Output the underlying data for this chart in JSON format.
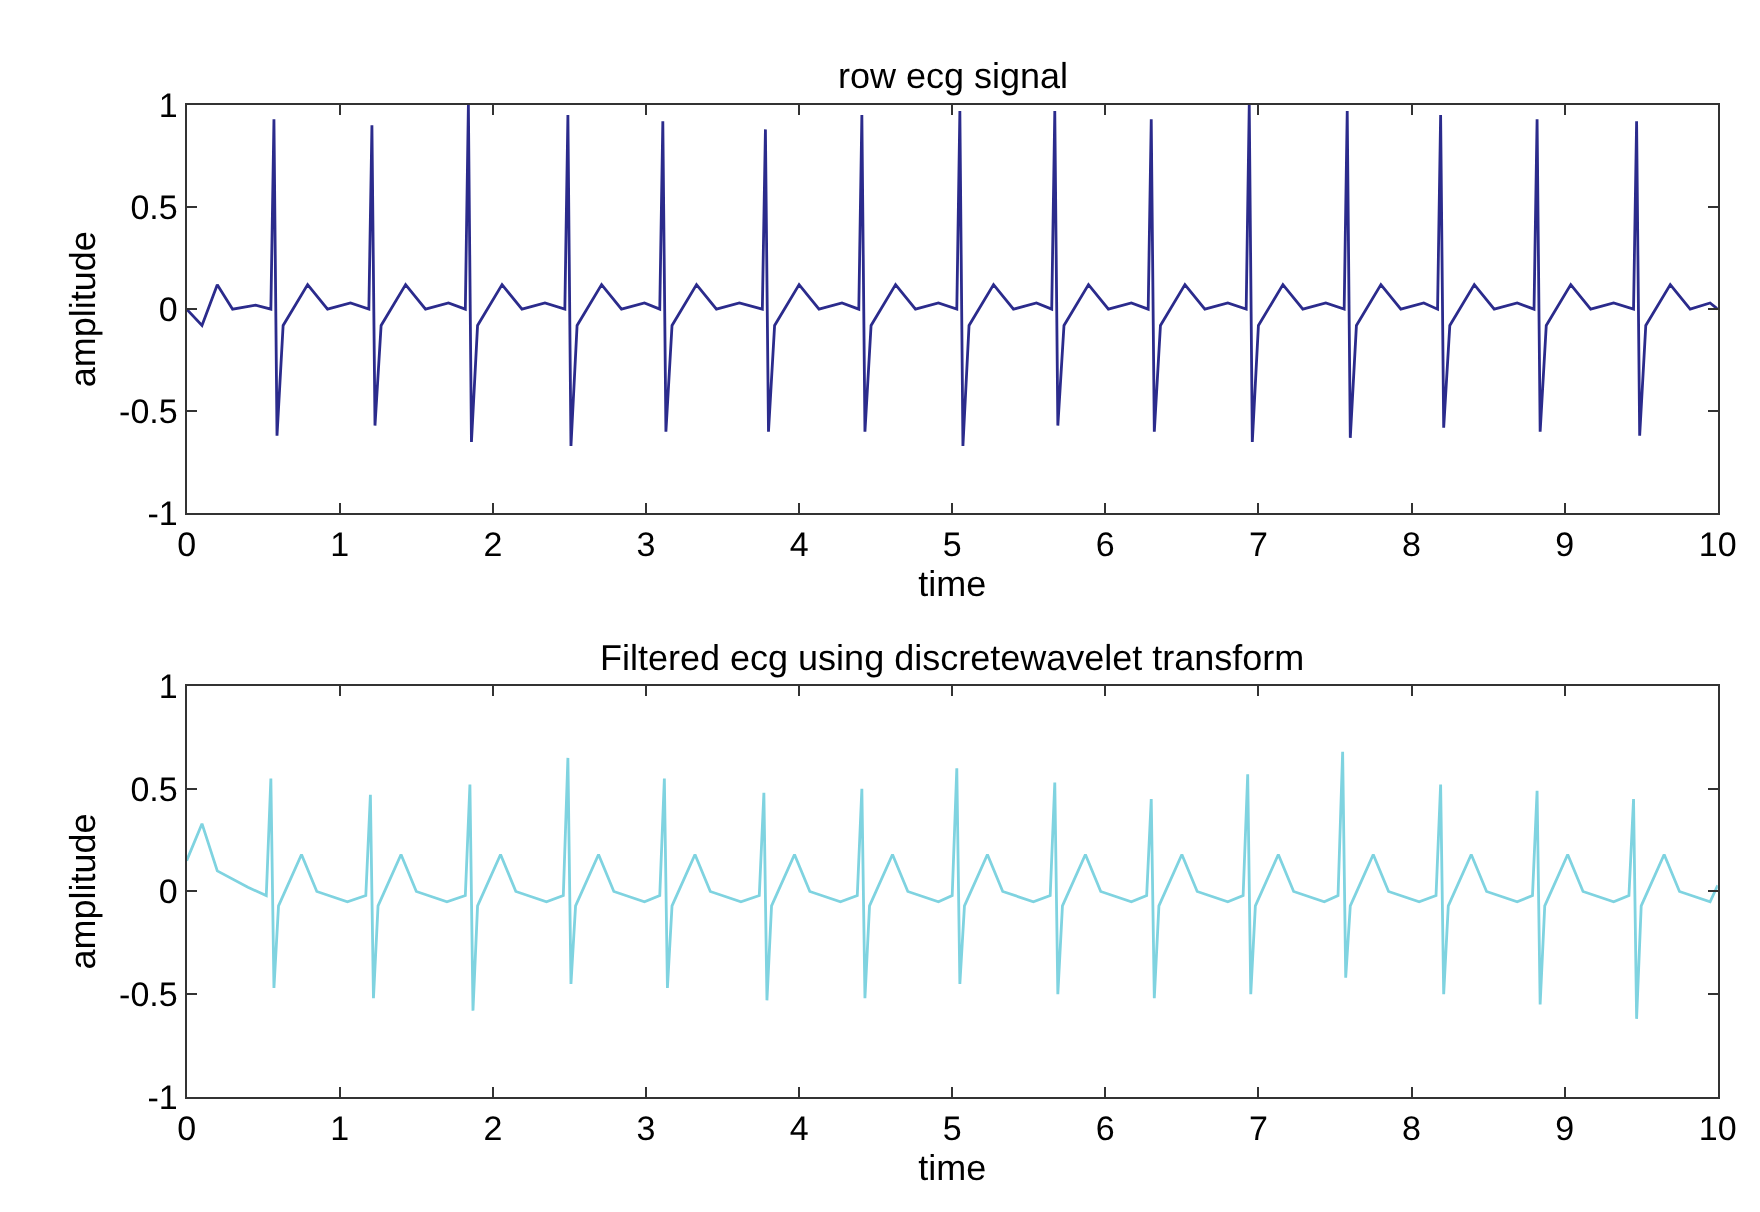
{
  "chart_data": [
    {
      "type": "line",
      "title": "row ecg signal",
      "xlabel": "time",
      "ylabel": "amplitude",
      "xlim": [
        0,
        10
      ],
      "ylim": [
        -1,
        1
      ],
      "xticks": [
        0,
        1,
        2,
        3,
        4,
        5,
        6,
        7,
        8,
        9,
        10
      ],
      "yticks": [
        -1,
        -0.5,
        0,
        0.5,
        1
      ],
      "marker": "none",
      "line_style": "solid",
      "series": [
        {
          "color": "#2b2b8c",
          "x": [
            0,
            0.1,
            0.2,
            0.3,
            0.45,
            0.55,
            0.57,
            0.59,
            0.63,
            0.79,
            0.92,
            1.07,
            1.19,
            1.21,
            1.23,
            1.27,
            1.43,
            1.56,
            1.71,
            1.82,
            1.84,
            1.86,
            1.9,
            2.06,
            2.19,
            2.34,
            2.47,
            2.49,
            2.51,
            2.55,
            2.71,
            2.84,
            2.99,
            3.09,
            3.11,
            3.13,
            3.17,
            3.33,
            3.46,
            3.61,
            3.76,
            3.78,
            3.8,
            3.84,
            4.0,
            4.13,
            4.28,
            4.39,
            4.41,
            4.43,
            4.47,
            4.63,
            4.76,
            4.91,
            5.03,
            5.05,
            5.07,
            5.11,
            5.27,
            5.4,
            5.55,
            5.65,
            5.67,
            5.69,
            5.73,
            5.89,
            6.02,
            6.17,
            6.28,
            6.3,
            6.32,
            6.36,
            6.52,
            6.65,
            6.8,
            6.92,
            6.94,
            6.96,
            7.0,
            7.16,
            7.29,
            7.44,
            7.56,
            7.58,
            7.6,
            7.64,
            7.8,
            7.93,
            8.08,
            8.17,
            8.19,
            8.21,
            8.25,
            8.41,
            8.54,
            8.69,
            8.8,
            8.82,
            8.84,
            8.88,
            9.04,
            9.17,
            9.32,
            9.45,
            9.47,
            9.49,
            9.53,
            9.69,
            9.82,
            9.95,
            10
          ],
          "values": [
            0,
            -0.08,
            0.12,
            0,
            0.02,
            0,
            0.93,
            -0.62,
            -0.08,
            0.12,
            0,
            0.03,
            0,
            0.9,
            -0.57,
            -0.08,
            0.12,
            0,
            0.03,
            0,
            1.0,
            -0.65,
            -0.08,
            0.12,
            0,
            0.03,
            0,
            0.95,
            -0.67,
            -0.08,
            0.12,
            0,
            0.03,
            0,
            0.92,
            -0.6,
            -0.08,
            0.12,
            0,
            0.03,
            0,
            0.88,
            -0.6,
            -0.08,
            0.12,
            0,
            0.03,
            0,
            0.95,
            -0.6,
            -0.08,
            0.12,
            0,
            0.03,
            0,
            0.97,
            -0.67,
            -0.08,
            0.12,
            0,
            0.03,
            0,
            0.97,
            -0.57,
            -0.08,
            0.12,
            0,
            0.03,
            0,
            0.93,
            -0.6,
            -0.08,
            0.12,
            0,
            0.03,
            0,
            1.0,
            -0.65,
            -0.08,
            0.12,
            0,
            0.03,
            0,
            0.97,
            -0.63,
            -0.08,
            0.12,
            0,
            0.03,
            0,
            0.95,
            -0.58,
            -0.08,
            0.12,
            0,
            0.03,
            0,
            0.93,
            -0.6,
            -0.08,
            0.12,
            0,
            0.03,
            0,
            0.92,
            -0.62,
            -0.08,
            0.12,
            0,
            0.03,
            0
          ]
        }
      ]
    },
    {
      "type": "line",
      "title": "Filtered ecg using discretewavelet transform",
      "xlabel": "time",
      "ylabel": "amplitude",
      "xlim": [
        0,
        10
      ],
      "ylim": [
        -1,
        1
      ],
      "xticks": [
        0,
        1,
        2,
        3,
        4,
        5,
        6,
        7,
        8,
        9,
        10
      ],
      "yticks": [
        -1,
        -0.5,
        0,
        0.5,
        1
      ],
      "marker": "none",
      "line_style": "solid",
      "series": [
        {
          "color": "#7fd3e0",
          "x": [
            0,
            0.1,
            0.2,
            0.4,
            0.52,
            0.55,
            0.57,
            0.6,
            0.75,
            0.85,
            1.05,
            1.17,
            1.2,
            1.22,
            1.25,
            1.4,
            1.5,
            1.7,
            1.82,
            1.85,
            1.87,
            1.9,
            2.05,
            2.15,
            2.35,
            2.46,
            2.49,
            2.51,
            2.54,
            2.69,
            2.79,
            2.99,
            3.09,
            3.12,
            3.14,
            3.17,
            3.32,
            3.42,
            3.62,
            3.74,
            3.77,
            3.79,
            3.82,
            3.97,
            4.07,
            4.27,
            4.38,
            4.41,
            4.43,
            4.46,
            4.61,
            4.71,
            4.91,
            5.0,
            5.03,
            5.05,
            5.08,
            5.23,
            5.33,
            5.53,
            5.64,
            5.67,
            5.69,
            5.72,
            5.87,
            5.97,
            6.17,
            6.27,
            6.3,
            6.32,
            6.35,
            6.5,
            6.6,
            6.8,
            6.9,
            6.93,
            6.95,
            6.98,
            7.13,
            7.23,
            7.43,
            7.52,
            7.55,
            7.57,
            7.6,
            7.75,
            7.85,
            8.05,
            8.16,
            8.19,
            8.21,
            8.24,
            8.39,
            8.49,
            8.69,
            8.79,
            8.82,
            8.84,
            8.87,
            9.02,
            9.12,
            9.32,
            9.42,
            9.45,
            9.47,
            9.5,
            9.65,
            9.75,
            9.95,
            10
          ],
          "values": [
            0.15,
            0.33,
            0.1,
            0.02,
            -0.02,
            0.55,
            -0.47,
            -0.07,
            0.18,
            0,
            -0.05,
            -0.02,
            0.47,
            -0.52,
            -0.07,
            0.18,
            0,
            -0.05,
            -0.02,
            0.52,
            -0.58,
            -0.07,
            0.18,
            0,
            -0.05,
            -0.02,
            0.65,
            -0.45,
            -0.07,
            0.18,
            0,
            -0.05,
            -0.02,
            0.55,
            -0.47,
            -0.07,
            0.18,
            0,
            -0.05,
            -0.02,
            0.48,
            -0.53,
            -0.07,
            0.18,
            0,
            -0.05,
            -0.02,
            0.5,
            -0.52,
            -0.07,
            0.18,
            0,
            -0.05,
            -0.02,
            0.6,
            -0.45,
            -0.07,
            0.18,
            0,
            -0.05,
            -0.02,
            0.53,
            -0.5,
            -0.07,
            0.18,
            0,
            -0.05,
            -0.02,
            0.45,
            -0.52,
            -0.07,
            0.18,
            0,
            -0.05,
            -0.02,
            0.57,
            -0.5,
            -0.07,
            0.18,
            0,
            -0.05,
            -0.02,
            0.68,
            -0.42,
            -0.07,
            0.18,
            0,
            -0.05,
            -0.02,
            0.52,
            -0.5,
            -0.07,
            0.18,
            0,
            -0.05,
            -0.02,
            0.49,
            -0.55,
            -0.07,
            0.18,
            0,
            -0.05,
            -0.02,
            0.45,
            -0.62,
            -0.07,
            0.18,
            0,
            -0.05,
            0.03
          ]
        }
      ]
    }
  ]
}
